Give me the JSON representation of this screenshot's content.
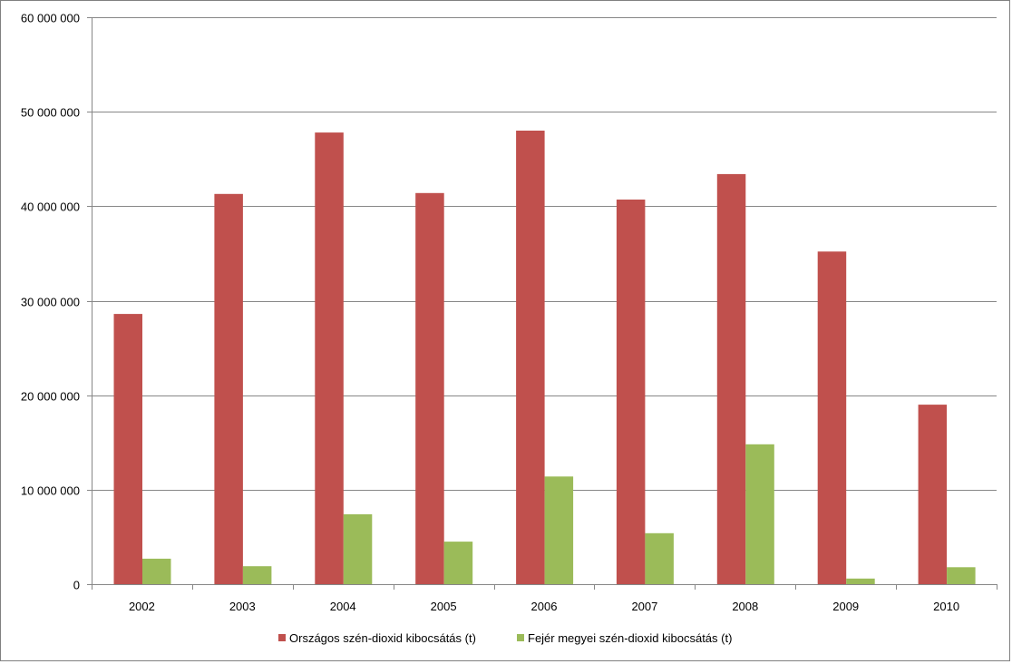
{
  "chart_data": {
    "type": "bar",
    "title": "",
    "xlabel": "",
    "ylabel": "",
    "categories": [
      "2002",
      "2003",
      "2004",
      "2005",
      "2006",
      "2007",
      "2008",
      "2009",
      "2010"
    ],
    "series": [
      {
        "name": "Országos szén-dioxid kibocsátás (t)",
        "color": "#c0504d",
        "values": [
          28600000,
          41300000,
          47800000,
          41400000,
          48000000,
          40700000,
          43400000,
          35200000,
          19000000
        ]
      },
      {
        "name": "Fejér megyei szén-dioxid kibocsátás (t)",
        "color": "#9bbb59",
        "values": [
          2700000,
          1900000,
          7400000,
          4500000,
          11400000,
          5400000,
          14800000,
          600000,
          1800000
        ]
      }
    ],
    "ylim": [
      0,
      60000000
    ],
    "yticks": [
      0,
      10000000,
      20000000,
      30000000,
      40000000,
      50000000,
      60000000
    ],
    "ytick_labels": [
      "0",
      "10 000 000",
      "20 000 000",
      "30 000 000",
      "40 000 000",
      "50 000 000",
      "60 000 000"
    ],
    "grid": true,
    "legend_position": "bottom",
    "gridline_color": "#878787",
    "axis_color": "#878787"
  }
}
